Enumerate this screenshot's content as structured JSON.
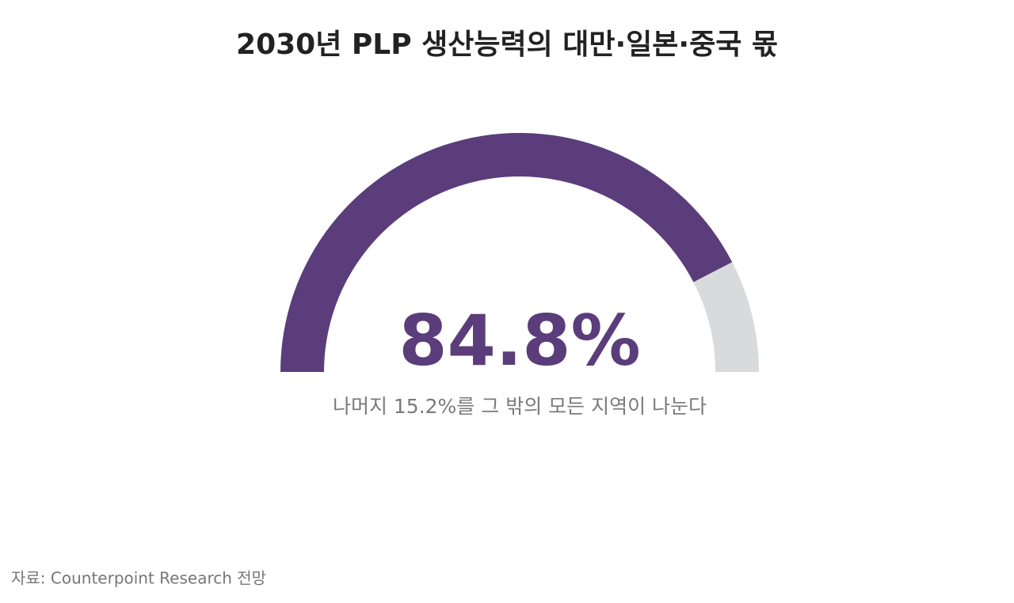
{
  "chart_data": {
    "type": "gauge",
    "title": "2030년 PLP 생산능력의 대만·일본·중국 몫",
    "value": 84.8,
    "value_label": "84.8%",
    "subtitle": "나머지 15.2%를 그 밖의 모든 지역이 나눈다",
    "source": "자료: Counterpoint Research 전망",
    "ylim": [
      0,
      100
    ],
    "color": "#5a3d7a",
    "track_color": "#d9dadc"
  }
}
